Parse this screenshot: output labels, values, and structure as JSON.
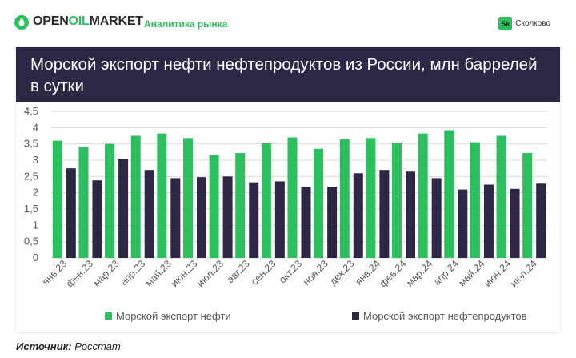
{
  "header": {
    "logo_open": "OPEN",
    "logo_oil": "OIL",
    "logo_market": "MARKET",
    "tagline": "Аналитика рынка",
    "sk_badge": "Sk",
    "sk_label": "Сколково"
  },
  "footer": {
    "source_label": "Источник:",
    "source_value": "Росстат"
  },
  "colors": {
    "oil": "#2bbf5e",
    "products": "#2d2645",
    "title_band": "#2d2645",
    "grid": "#d9d9d9"
  },
  "chart_data": {
    "type": "bar",
    "title": "Морской экспорт нефти нефтепродуктов из России, млн баррелей в сутки",
    "categories": [
      "янв.23",
      "фев.23",
      "мар.23",
      "апр.23",
      "май.23",
      "июн.23",
      "июл.23",
      "авг.23",
      "сен.23",
      "окт.23",
      "ноя.23",
      "дек.23",
      "янв.24",
      "фев.24",
      "мар.24",
      "апр.24",
      "май.24",
      "июн.24",
      "июл.24"
    ],
    "series": [
      {
        "name": "Морской экспорт нефти",
        "values": [
          3.6,
          3.4,
          3.5,
          3.75,
          3.82,
          3.68,
          3.16,
          3.22,
          3.52,
          3.7,
          3.35,
          3.65,
          3.68,
          3.52,
          3.82,
          3.92,
          3.55,
          3.75,
          3.22
        ]
      },
      {
        "name": "Морской экспорт нефтепродуктов",
        "values": [
          2.75,
          2.38,
          3.05,
          2.7,
          2.45,
          2.48,
          2.5,
          2.32,
          2.35,
          2.18,
          2.18,
          2.6,
          2.7,
          2.65,
          2.45,
          2.1,
          2.25,
          2.12,
          2.28
        ]
      }
    ],
    "yticks": [
      "0",
      "0,5",
      "1",
      "1,5",
      "2",
      "2,5",
      "3",
      "3,5",
      "4",
      "4,5"
    ],
    "ylim": [
      0,
      4.5
    ],
    "grid": true,
    "legend": "bottom"
  }
}
